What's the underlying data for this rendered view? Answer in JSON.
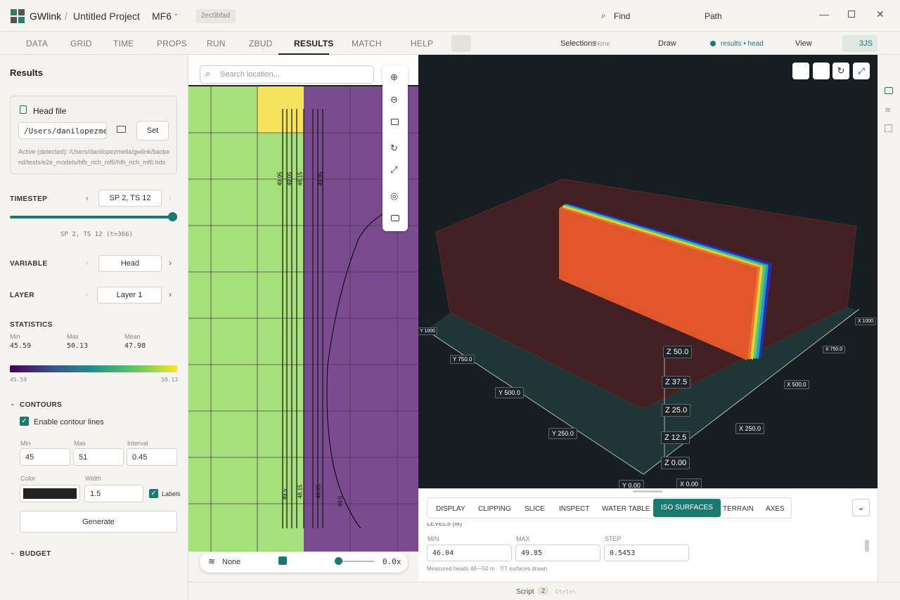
{
  "titlebar": {
    "app": "GWlink",
    "separator": "/",
    "project": "Untitled Project",
    "model": "MF6",
    "commit": "2ec0bfad",
    "find": "Find",
    "path": "Path"
  },
  "toolbar": {
    "tabs": [
      "DATA",
      "GRID",
      "TIME",
      "PROPS",
      "RUN",
      "ZBUD",
      "RESULTS",
      "MATCH",
      "HELP"
    ],
    "selections": "Selections",
    "selections_value": "None",
    "draw": "Draw",
    "layer_chip": "results • head",
    "view": "View",
    "renderer": "3JS"
  },
  "sidebar": {
    "title": "Results",
    "head_file": {
      "title": "Head file",
      "path": "/Users/danilopezmel",
      "set": "Set",
      "active": "Active (detected): /Users/danilopezmella/gwlink/backend/tests/e2e_models/hfb_rich_mf6/hfb_rich_mf6.hds"
    },
    "timestep": {
      "label": "TIMESTEP",
      "value": "SP 2, TS 12",
      "caption": "SP 2, TS 12 (t=366)"
    },
    "variable": {
      "label": "VARIABLE",
      "value": "Head"
    },
    "layer": {
      "label": "LAYER",
      "value": "Layer 1"
    },
    "statistics": {
      "label": "STATISTICS",
      "items": [
        {
          "label": "Min",
          "value": "45.59"
        },
        {
          "label": "Max",
          "value": "50.13"
        },
        {
          "label": "Mean",
          "value": "47.98"
        }
      ],
      "scale_min": "45.59",
      "scale_max": "50.13"
    },
    "contours": {
      "label": "CONTOURS",
      "enable": "Enable contour lines",
      "min_label": "Min",
      "min": "45",
      "max_label": "Max",
      "max": "51",
      "interval_label": "Interval",
      "interval": "0.45",
      "color_label": "Color",
      "width_label": "Width",
      "width": "1.5",
      "labels": "Labels",
      "generate": "Generate"
    },
    "budget": "BUDGET"
  },
  "map": {
    "search": "Search location...",
    "contour_labels_top": [
      "49.95",
      "49.05",
      "48.15",
      "49.95"
    ],
    "contour_labels_bottom": [
      "49.5",
      "48.15",
      "49.05",
      "49.6"
    ],
    "basemap": "None",
    "speed": "0.0x"
  },
  "viewer": {
    "y_labels": [
      "Y 1000",
      "Y 750.0",
      "Y 500.0",
      "Y 250.0",
      "Y 0.00"
    ],
    "x_labels": [
      "X 0.00",
      "X 250.0",
      "X 500.0",
      "X 750.0",
      "X 1000"
    ],
    "z_labels": [
      "Z 50.0",
      "Z 37.5",
      "Z 25.0",
      "Z 12.5",
      "Z 0.00"
    ],
    "tabs": [
      "DISPLAY",
      "CLIPPING",
      "SLICE",
      "INSPECT",
      "WATER TABLE",
      "ISO SURFACES",
      "TERRAIN",
      "AXES"
    ],
    "levels_title": "LEVELS (M)",
    "fields": [
      {
        "label": "MIN",
        "value": "46.04"
      },
      {
        "label": "MAX",
        "value": "49.85"
      },
      {
        "label": "STEP",
        "value": "0.5453"
      }
    ],
    "note": "Measured heads 46—50 m · 7/7 surfaces drawn"
  },
  "statusbar": {
    "script": "Script",
    "count": "2",
    "shortcut": "Ctrl+\\"
  }
}
